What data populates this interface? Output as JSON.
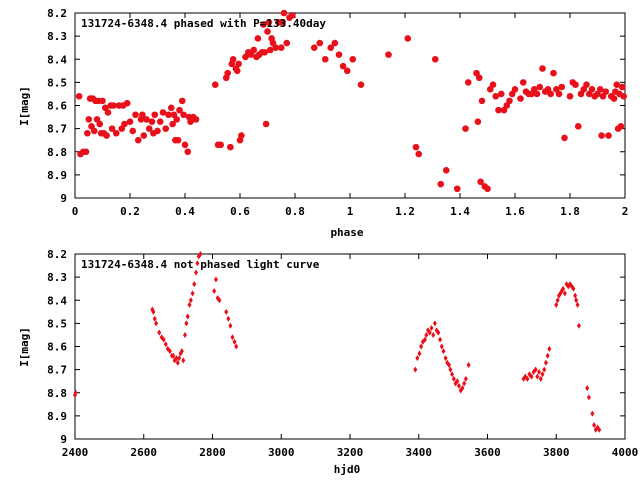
{
  "colors": {
    "points": "#e8101a",
    "axes": "#000000"
  },
  "chart_data": [
    {
      "type": "scatter",
      "title": "131724-6348.4 phased with P=133.40day",
      "xlabel": "phase",
      "ylabel": "I[mag]",
      "xlim": [
        0,
        2
      ],
      "ylim": [
        8.2,
        9
      ],
      "y_inverted": true,
      "grid": false,
      "xticks": [
        "0",
        "0.2",
        "0.4",
        "0.6",
        "0.8",
        "1",
        "1.2",
        "1.4",
        "1.6",
        "1.8",
        "2"
      ],
      "yticks": [
        "8.2",
        "8.3",
        "8.4",
        "8.5",
        "8.6",
        "8.7",
        "8.8",
        "8.9",
        "9"
      ],
      "marker": "filled-circle-large",
      "points": [
        [
          0.015,
          8.56
        ],
        [
          0.02,
          8.81
        ],
        [
          0.03,
          8.8
        ],
        [
          0.04,
          8.8
        ],
        [
          0.045,
          8.72
        ],
        [
          0.05,
          8.66
        ],
        [
          0.055,
          8.57
        ],
        [
          0.06,
          8.69
        ],
        [
          0.065,
          8.57
        ],
        [
          0.07,
          8.71
        ],
        [
          0.075,
          8.58
        ],
        [
          0.08,
          8.66
        ],
        [
          0.085,
          8.58
        ],
        [
          0.09,
          8.68
        ],
        [
          0.095,
          8.72
        ],
        [
          0.1,
          8.58
        ],
        [
          0.105,
          8.72
        ],
        [
          0.11,
          8.61
        ],
        [
          0.115,
          8.73
        ],
        [
          0.12,
          8.63
        ],
        [
          0.13,
          8.6
        ],
        [
          0.135,
          8.7
        ],
        [
          0.14,
          8.6
        ],
        [
          0.15,
          8.72
        ],
        [
          0.16,
          8.6
        ],
        [
          0.17,
          8.7
        ],
        [
          0.175,
          8.6
        ],
        [
          0.18,
          8.68
        ],
        [
          0.19,
          8.59
        ],
        [
          0.2,
          8.67
        ],
        [
          0.21,
          8.71
        ],
        [
          0.22,
          8.64
        ],
        [
          0.23,
          8.75
        ],
        [
          0.24,
          8.66
        ],
        [
          0.245,
          8.64
        ],
        [
          0.25,
          8.73
        ],
        [
          0.26,
          8.66
        ],
        [
          0.27,
          8.7
        ],
        [
          0.28,
          8.67
        ],
        [
          0.285,
          8.72
        ],
        [
          0.29,
          8.64
        ],
        [
          0.3,
          8.71
        ],
        [
          0.31,
          8.67
        ],
        [
          0.32,
          8.63
        ],
        [
          0.33,
          8.7
        ],
        [
          0.34,
          8.64
        ],
        [
          0.35,
          8.61
        ],
        [
          0.355,
          8.68
        ],
        [
          0.36,
          8.64
        ],
        [
          0.365,
          8.75
        ],
        [
          0.37,
          8.66
        ],
        [
          0.375,
          8.75
        ],
        [
          0.38,
          8.62
        ],
        [
          0.39,
          8.58
        ],
        [
          0.395,
          8.64
        ],
        [
          0.4,
          8.77
        ],
        [
          0.41,
          8.8
        ],
        [
          0.415,
          8.65
        ],
        [
          0.42,
          8.67
        ],
        [
          0.43,
          8.65
        ],
        [
          0.44,
          8.66
        ],
        [
          0.51,
          8.51
        ],
        [
          0.52,
          8.77
        ],
        [
          0.53,
          8.77
        ],
        [
          0.55,
          8.48
        ],
        [
          0.555,
          8.46
        ],
        [
          0.565,
          8.78
        ],
        [
          0.57,
          8.42
        ],
        [
          0.575,
          8.4
        ],
        [
          0.585,
          8.44
        ],
        [
          0.59,
          8.45
        ],
        [
          0.595,
          8.42
        ],
        [
          0.6,
          8.75
        ],
        [
          0.605,
          8.73
        ],
        [
          0.62,
          8.39
        ],
        [
          0.63,
          8.37
        ],
        [
          0.64,
          8.38
        ],
        [
          0.65,
          8.36
        ],
        [
          0.66,
          8.39
        ],
        [
          0.665,
          8.31
        ],
        [
          0.67,
          8.38
        ],
        [
          0.68,
          8.37
        ],
        [
          0.685,
          8.25
        ],
        [
          0.69,
          8.37
        ],
        [
          0.695,
          8.68
        ],
        [
          0.7,
          8.28
        ],
        [
          0.705,
          8.24
        ],
        [
          0.71,
          8.36
        ],
        [
          0.715,
          8.31
        ],
        [
          0.72,
          8.33
        ],
        [
          0.73,
          8.35
        ],
        [
          0.74,
          8.24
        ],
        [
          0.75,
          8.35
        ],
        [
          0.755,
          8.24
        ],
        [
          0.76,
          8.2
        ],
        [
          0.77,
          8.33
        ],
        [
          0.78,
          8.22
        ],
        [
          0.79,
          8.21
        ],
        [
          0.87,
          8.35
        ],
        [
          0.89,
          8.33
        ],
        [
          0.91,
          8.4
        ],
        [
          0.93,
          8.35
        ],
        [
          0.945,
          8.33
        ],
        [
          0.96,
          8.38
        ],
        [
          0.975,
          8.43
        ],
        [
          0.99,
          8.45
        ],
        [
          1.01,
          8.4
        ],
        [
          1.04,
          8.51
        ],
        [
          1.14,
          8.38
        ],
        [
          1.21,
          8.31
        ],
        [
          1.24,
          8.78
        ],
        [
          1.25,
          8.81
        ],
        [
          1.31,
          8.4
        ],
        [
          1.33,
          8.94
        ],
        [
          1.35,
          8.88
        ],
        [
          1.39,
          8.96
        ],
        [
          1.42,
          8.7
        ],
        [
          1.43,
          8.5
        ],
        [
          1.46,
          8.46
        ],
        [
          1.465,
          8.67
        ],
        [
          1.47,
          8.48
        ],
        [
          1.475,
          8.93
        ],
        [
          1.48,
          8.58
        ],
        [
          1.49,
          8.95
        ],
        [
          1.5,
          8.96
        ],
        [
          1.51,
          8.53
        ],
        [
          1.52,
          8.51
        ],
        [
          1.53,
          8.56
        ],
        [
          1.54,
          8.62
        ],
        [
          1.55,
          8.55
        ],
        [
          1.56,
          8.62
        ],
        [
          1.57,
          8.6
        ],
        [
          1.58,
          8.58
        ],
        [
          1.59,
          8.55
        ],
        [
          1.6,
          8.53
        ],
        [
          1.62,
          8.57
        ],
        [
          1.63,
          8.5
        ],
        [
          1.64,
          8.54
        ],
        [
          1.65,
          8.55
        ],
        [
          1.66,
          8.55
        ],
        [
          1.67,
          8.53
        ],
        [
          1.68,
          8.55
        ],
        [
          1.69,
          8.52
        ],
        [
          1.7,
          8.44
        ],
        [
          1.71,
          8.54
        ],
        [
          1.72,
          8.53
        ],
        [
          1.73,
          8.55
        ],
        [
          1.74,
          8.46
        ],
        [
          1.75,
          8.53
        ],
        [
          1.76,
          8.55
        ],
        [
          1.77,
          8.52
        ],
        [
          1.78,
          8.74
        ],
        [
          1.8,
          8.56
        ],
        [
          1.81,
          8.5
        ],
        [
          1.82,
          8.51
        ],
        [
          1.83,
          8.69
        ],
        [
          1.84,
          8.55
        ],
        [
          1.85,
          8.53
        ],
        [
          1.86,
          8.51
        ],
        [
          1.87,
          8.55
        ],
        [
          1.88,
          8.53
        ],
        [
          1.89,
          8.56
        ],
        [
          1.9,
          8.55
        ],
        [
          1.91,
          8.53
        ],
        [
          1.915,
          8.73
        ],
        [
          1.92,
          8.56
        ],
        [
          1.93,
          8.54
        ],
        [
          1.94,
          8.73
        ],
        [
          1.95,
          8.56
        ],
        [
          1.96,
          8.57
        ],
        [
          1.965,
          8.54
        ],
        [
          1.97,
          8.51
        ],
        [
          1.975,
          8.7
        ],
        [
          1.98,
          8.55
        ],
        [
          1.985,
          8.69
        ],
        [
          1.99,
          8.52
        ],
        [
          1.995,
          8.56
        ]
      ]
    },
    {
      "type": "scatter",
      "title": "131724-6348.4 not phased light curve",
      "xlabel": "hjd0",
      "ylabel": "I[mag]",
      "xlim": [
        2400,
        4000
      ],
      "ylim": [
        8.2,
        9
      ],
      "y_inverted": true,
      "grid": false,
      "xticks": [
        "2400",
        "2600",
        "2800",
        "3000",
        "3200",
        "3400",
        "3600",
        "3800",
        "4000"
      ],
      "yticks": [
        "8.2",
        "8.3",
        "8.4",
        "8.5",
        "8.6",
        "8.7",
        "8.8",
        "8.9",
        "9"
      ],
      "marker": "small-diamond",
      "points": [
        [
          2400,
          8.81
        ],
        [
          2402,
          8.8
        ],
        [
          2625,
          8.44
        ],
        [
          2628,
          8.45
        ],
        [
          2632,
          8.48
        ],
        [
          2636,
          8.5
        ],
        [
          2645,
          8.54
        ],
        [
          2652,
          8.56
        ],
        [
          2658,
          8.57
        ],
        [
          2664,
          8.59
        ],
        [
          2670,
          8.61
        ],
        [
          2676,
          8.62
        ],
        [
          2682,
          8.64
        ],
        [
          2686,
          8.64
        ],
        [
          2690,
          8.66
        ],
        [
          2695,
          8.65
        ],
        [
          2699,
          8.67
        ],
        [
          2703,
          8.65
        ],
        [
          2707,
          8.63
        ],
        [
          2711,
          8.62
        ],
        [
          2715,
          8.66
        ],
        [
          2720,
          8.55
        ],
        [
          2724,
          8.5
        ],
        [
          2728,
          8.47
        ],
        [
          2733,
          8.42
        ],
        [
          2737,
          8.4
        ],
        [
          2742,
          8.37
        ],
        [
          2747,
          8.33
        ],
        [
          2752,
          8.28
        ],
        [
          2756,
          8.24
        ],
        [
          2760,
          8.21
        ],
        [
          2765,
          8.2
        ],
        [
          2805,
          8.36
        ],
        [
          2810,
          8.31
        ],
        [
          2815,
          8.39
        ],
        [
          2820,
          8.4
        ],
        [
          2840,
          8.45
        ],
        [
          2846,
          8.48
        ],
        [
          2852,
          8.51
        ],
        [
          2858,
          8.56
        ],
        [
          2864,
          8.58
        ],
        [
          2869,
          8.6
        ],
        [
          3390,
          8.7
        ],
        [
          3396,
          8.65
        ],
        [
          3402,
          8.63
        ],
        [
          3407,
          8.6
        ],
        [
          3412,
          8.58
        ],
        [
          3418,
          8.57
        ],
        [
          3422,
          8.55
        ],
        [
          3427,
          8.53
        ],
        [
          3432,
          8.54
        ],
        [
          3437,
          8.52
        ],
        [
          3442,
          8.55
        ],
        [
          3447,
          8.5
        ],
        [
          3452,
          8.53
        ],
        [
          3457,
          8.54
        ],
        [
          3462,
          8.57
        ],
        [
          3467,
          8.6
        ],
        [
          3472,
          8.62
        ],
        [
          3478,
          8.65
        ],
        [
          3483,
          8.67
        ],
        [
          3488,
          8.68
        ],
        [
          3492,
          8.7
        ],
        [
          3497,
          8.72
        ],
        [
          3502,
          8.74
        ],
        [
          3507,
          8.76
        ],
        [
          3512,
          8.75
        ],
        [
          3517,
          8.77
        ],
        [
          3522,
          8.79
        ],
        [
          3527,
          8.78
        ],
        [
          3532,
          8.76
        ],
        [
          3537,
          8.74
        ],
        [
          3545,
          8.68
        ],
        [
          3705,
          8.74
        ],
        [
          3710,
          8.73
        ],
        [
          3716,
          8.74
        ],
        [
          3722,
          8.72
        ],
        [
          3728,
          8.73
        ],
        [
          3734,
          8.71
        ],
        [
          3740,
          8.7
        ],
        [
          3745,
          8.73
        ],
        [
          3750,
          8.71
        ],
        [
          3755,
          8.74
        ],
        [
          3760,
          8.72
        ],
        [
          3765,
          8.7
        ],
        [
          3770,
          8.67
        ],
        [
          3775,
          8.64
        ],
        [
          3780,
          8.61
        ],
        [
          3800,
          8.42
        ],
        [
          3804,
          8.4
        ],
        [
          3808,
          8.38
        ],
        [
          3812,
          8.37
        ],
        [
          3816,
          8.36
        ],
        [
          3820,
          8.35
        ],
        [
          3825,
          8.37
        ],
        [
          3830,
          8.33
        ],
        [
          3835,
          8.34
        ],
        [
          3840,
          8.33
        ],
        [
          3845,
          8.34
        ],
        [
          3850,
          8.35
        ],
        [
          3855,
          8.38
        ],
        [
          3858,
          8.4
        ],
        [
          3862,
          8.42
        ],
        [
          3866,
          8.51
        ],
        [
          3890,
          8.78
        ],
        [
          3895,
          8.82
        ],
        [
          3905,
          8.89
        ],
        [
          3910,
          8.94
        ],
        [
          3915,
          8.96
        ],
        [
          3920,
          8.95
        ],
        [
          3925,
          8.96
        ]
      ]
    }
  ]
}
